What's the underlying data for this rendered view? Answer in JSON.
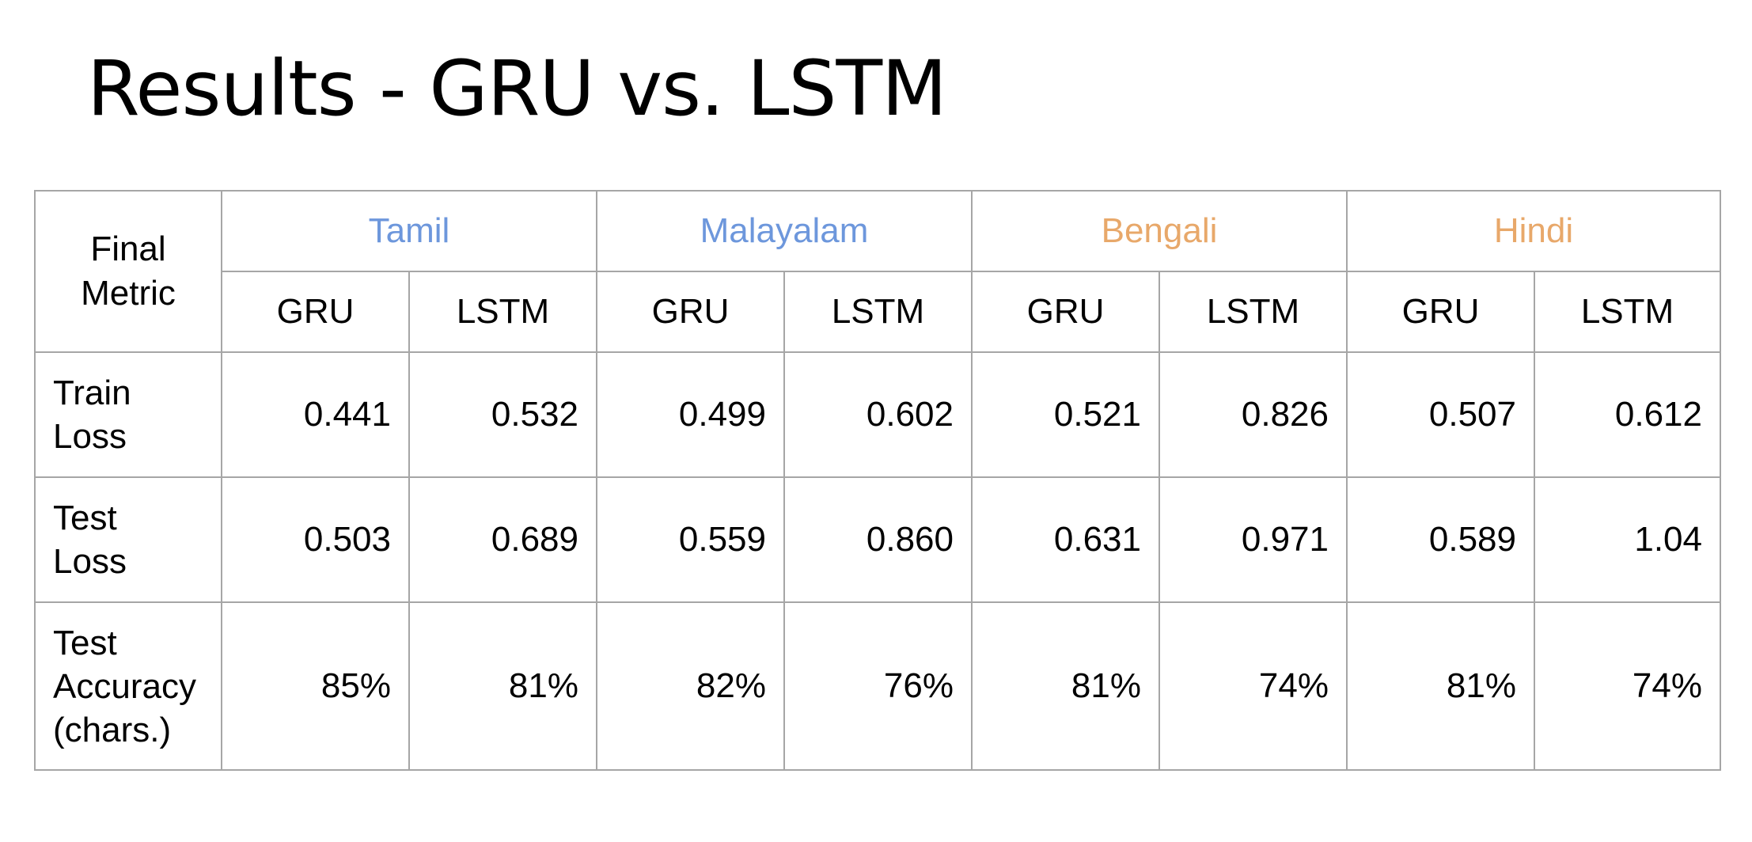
{
  "title": "Results - GRU vs. LSTM",
  "table": {
    "corner_header": [
      "Final",
      "Metric"
    ],
    "languages": [
      {
        "name": "Tamil",
        "color": "#6d97dc"
      },
      {
        "name": "Malayalam",
        "color": "#6d97dc"
      },
      {
        "name": "Bengali",
        "color": "#e8a86a"
      },
      {
        "name": "Hindi",
        "color": "#e8a86a"
      }
    ],
    "models": [
      "GRU",
      "LSTM",
      "GRU",
      "LSTM",
      "GRU",
      "LSTM",
      "GRU",
      "LSTM"
    ],
    "rows": [
      {
        "label": [
          "Train",
          "Loss"
        ],
        "values": [
          "0.441",
          "0.532",
          "0.499",
          "0.602",
          "0.521",
          "0.826",
          "0.507",
          "0.612"
        ]
      },
      {
        "label": [
          "Test",
          "Loss"
        ],
        "values": [
          "0.503",
          "0.689",
          "0.559",
          "0.860",
          "0.631",
          "0.971",
          "0.589",
          "1.04"
        ]
      },
      {
        "label": [
          "Test",
          "Accuracy",
          "(chars.)"
        ],
        "values": [
          "85%",
          "81%",
          "82%",
          "76%",
          "81%",
          "74%",
          "81%",
          "74%"
        ],
        "bold": [
          true,
          false,
          true,
          false,
          true,
          false,
          true,
          false
        ]
      }
    ]
  }
}
